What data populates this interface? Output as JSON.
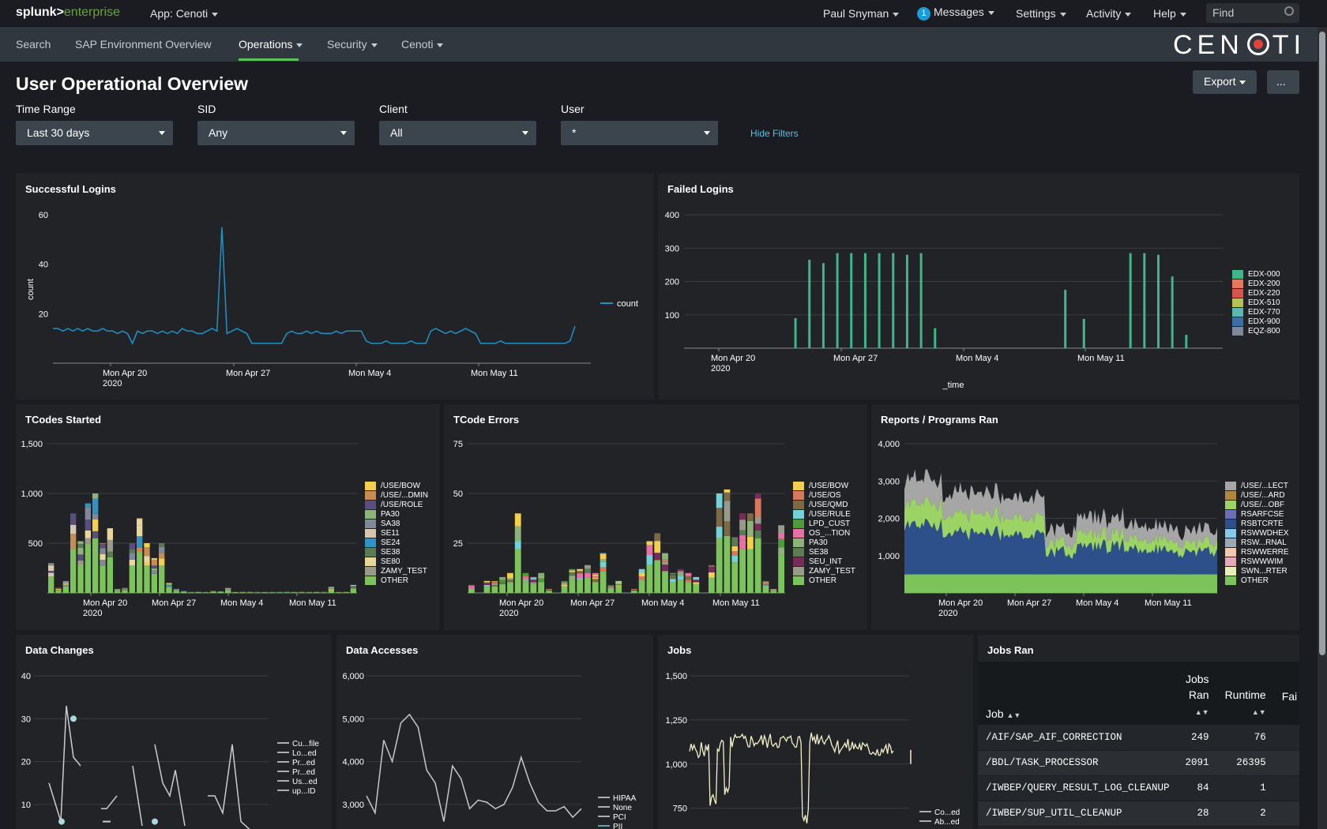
{
  "topbar": {
    "logo_a": "splunk>",
    "logo_b": "enterprise",
    "app": "App: Cenoti",
    "user": "Paul Snyman",
    "messages_count": "1",
    "messages": "Messages",
    "settings": "Settings",
    "activity": "Activity",
    "help": "Help",
    "find_placeholder": "Find"
  },
  "nav": {
    "items": [
      "Search",
      "SAP Environment Overview",
      "Operations",
      "Security",
      "Cenoti"
    ],
    "brand_left": "CEN",
    "brand_right": "TI"
  },
  "page": {
    "title": "User Operational Overview",
    "export": "Export",
    "more": "..."
  },
  "filters": {
    "time_label": "Time Range",
    "time_value": "Last 30 days",
    "sid_label": "SID",
    "sid_value": "Any",
    "client_label": "Client",
    "client_value": "All",
    "user_label": "User",
    "user_value": "*",
    "hide": "Hide Filters"
  },
  "colors": {
    "accent": "#5cc05c",
    "line_blue": "#1e93c6",
    "teal": "#3fb68b",
    "cream": "#f5f1c9"
  },
  "panels": {
    "successful_logins": "Successful Logins",
    "failed_logins": "Failed Logins",
    "tcodes_started": "TCodes Started",
    "tcode_errors": "TCode Errors",
    "reports_ran": "Reports / Programs Ran",
    "data_changes": "Data Changes",
    "data_accesses": "Data Accesses",
    "jobs": "Jobs",
    "jobs_ran": "Jobs Ran"
  },
  "chart_data": [
    {
      "id": "successful_logins",
      "type": "line",
      "ylabel": "count",
      "yticks": [
        20,
        40,
        60
      ],
      "ylim": [
        0,
        60
      ],
      "xticks": [
        "Mon Apr 20\n2020",
        "Mon Apr 27",
        "Mon May 4",
        "Mon May 11"
      ],
      "series": [
        {
          "name": "count",
          "color": "#1e93c6",
          "values": [
            14,
            14,
            13,
            14,
            13,
            14,
            13,
            14,
            13,
            13,
            14,
            13,
            13,
            12,
            13,
            12,
            8,
            13,
            12,
            13,
            13,
            12,
            13,
            12,
            13,
            12,
            14,
            13,
            13,
            12,
            12,
            13,
            14,
            13,
            55,
            12,
            13,
            14,
            13,
            12,
            8,
            8,
            8,
            8,
            8,
            8,
            8,
            12,
            13,
            12,
            12,
            13,
            12,
            13,
            12,
            12,
            12,
            13,
            12,
            13,
            13,
            13,
            13,
            9,
            8,
            8,
            8,
            9,
            8,
            8,
            8,
            8,
            9,
            8,
            8,
            8,
            13,
            14,
            13,
            12,
            13,
            12,
            13,
            14,
            13,
            12,
            8,
            8,
            8,
            8,
            9,
            8,
            8,
            8,
            8,
            8,
            8,
            8,
            8,
            8,
            8,
            8,
            8,
            8,
            9,
            15
          ]
        }
      ]
    },
    {
      "id": "failed_logins",
      "type": "bar",
      "xlabel": "_time",
      "yticks": [
        100,
        200,
        300,
        400
      ],
      "ylim": [
        0,
        400
      ],
      "xticks": [
        "Mon Apr 20\n2020",
        "Mon Apr 27",
        "Mon May 4",
        "Mon May 11"
      ],
      "legend": [
        "EDX-000",
        "EDX-200",
        "EDX-220",
        "EDX-510",
        "EDX-770",
        "EDX-900",
        "EQZ-800"
      ],
      "legend_colors": [
        "#3fb68b",
        "#e8785a",
        "#d9534f",
        "#b5c152",
        "#5bb7b2",
        "#3d6fa7",
        "#7e8a99"
      ],
      "values": [
        0,
        0,
        0,
        0,
        0,
        0,
        0,
        0,
        0,
        0,
        0,
        0,
        0,
        0,
        0,
        0,
        0,
        0,
        0,
        0,
        0,
        0,
        90,
        0,
        0,
        265,
        0,
        0,
        255,
        0,
        0,
        285,
        0,
        0,
        285,
        0,
        0,
        285,
        0,
        0,
        285,
        0,
        0,
        285,
        0,
        0,
        280,
        0,
        0,
        285,
        0,
        0,
        60,
        0,
        0,
        0,
        0,
        0,
        0,
        0,
        0,
        0,
        0,
        0,
        0,
        0,
        0,
        0,
        0,
        0,
        0,
        0,
        0,
        0,
        0,
        0,
        0,
        0,
        0,
        0,
        175,
        0,
        0,
        0,
        88,
        0,
        0,
        0,
        0,
        0,
        0,
        0,
        0,
        0,
        285,
        0,
        0,
        285,
        0,
        0,
        280,
        0,
        0,
        215,
        0,
        0,
        40,
        0,
        0,
        0
      ]
    },
    {
      "id": "tcodes_started",
      "type": "bar",
      "yticks": [
        500,
        "1,000",
        "1,500"
      ],
      "ylim": [
        0,
        1500
      ],
      "xticks": [
        "Mon Apr 20\n2020",
        "Mon Apr 27",
        "Mon May 4",
        "Mon May 11"
      ],
      "legend": [
        "/USE/BOW",
        "/USE/...DMIN",
        "/USE/ROLE",
        "PA30",
        "SA38",
        "SE11",
        "SE24",
        "SE38",
        "SE80",
        "ZAMY_TEST",
        "OTHER"
      ],
      "legend_colors": [
        "#f4cf4e",
        "#c78c52",
        "#5a4e7e",
        "#8db379",
        "#7e8a99",
        "#d8c7ad",
        "#2f94c3",
        "#597c52",
        "#e8d69a",
        "#9a9a8a",
        "#7dc35b"
      ]
    },
    {
      "id": "tcode_errors",
      "type": "bar",
      "yticks": [
        25,
        50,
        75
      ],
      "ylim": [
        0,
        75
      ],
      "xticks": [
        "Mon Apr 20\n2020",
        "Mon Apr 27",
        "Mon May 4",
        "Mon May 11"
      ],
      "legend": [
        "/USE/BOW",
        "/USE/OS",
        "/USE/QMD",
        "/USE/RULE",
        "LPD_CUST",
        "OS_...TION",
        "PA30",
        "SE38",
        "SEU_INT",
        "ZAMY_TEST",
        "OTHER"
      ],
      "legend_colors": [
        "#f4cf4e",
        "#d9785a",
        "#7c6a45",
        "#6fd3d8",
        "#4f9a3a",
        "#e96fa8",
        "#8db379",
        "#597c52",
        "#7a2a5a",
        "#9a9a8a",
        "#7dc35b"
      ]
    },
    {
      "id": "reports_ran",
      "type": "area",
      "yticks": [
        "1,000",
        "2,000",
        "3,000",
        "4,000"
      ],
      "ylim": [
        0,
        4000
      ],
      "xticks": [
        "Mon Apr 20\n2020",
        "Mon Apr 27",
        "Mon May 4",
        "Mon May 11"
      ],
      "legend": [
        "/USE/...LECT",
        "/USE/...ARD",
        "/USE/...OBF",
        "RSARFCSE",
        "RSBTCRTE",
        "RSWWDHEX",
        "RSW...RNAL",
        "RSWWERRE",
        "RSWWWIM",
        "SWN...RTER",
        "OTHER"
      ],
      "legend_colors": [
        "#a6a6a6",
        "#b3863e",
        "#9bd364",
        "#6a6fb8",
        "#2d4f8a",
        "#88c8e8",
        "#9aaab5",
        "#f2c9b0",
        "#e6a9b8",
        "#e6efb5",
        "#7dc35b"
      ]
    },
    {
      "id": "data_changes",
      "type": "line",
      "yticks": [
        10,
        20,
        30,
        40
      ],
      "ylim": [
        0,
        40
      ],
      "legend": [
        "Cu...file",
        "Lo...ed",
        "Pr...ed",
        "Pr...ed",
        "Us...ed",
        "up...ID"
      ]
    },
    {
      "id": "data_accesses",
      "type": "line",
      "yticks": [
        "3,000",
        "4,000",
        "5,000",
        "6,000"
      ],
      "ylim": [
        2500,
        6000
      ],
      "legend": [
        "HIPAA",
        "None",
        "PCI",
        "PII"
      ]
    },
    {
      "id": "jobs",
      "type": "line",
      "yticks": [
        750,
        "1,000",
        "1,250",
        "1,500"
      ],
      "ylim": [
        650,
        1500
      ],
      "legend": [
        "Co...ed",
        "Ab...ed"
      ]
    }
  ],
  "jobs_table": {
    "headers": {
      "job": "Job",
      "jobs_ran_1": "Jobs",
      "jobs_ran_2": "Ran",
      "runtime": "Runtime",
      "fail": "Fai"
    },
    "rows": [
      {
        "job": "/AIF/SAP_AIF_CORRECTION",
        "ran": "249",
        "runtime": "76"
      },
      {
        "job": "/BDL/TASK_PROCESSOR",
        "ran": "2091",
        "runtime": "26395"
      },
      {
        "job": "/IWBEP/QUERY_RESULT_LOG_CLEANUP",
        "ran": "84",
        "runtime": "1"
      },
      {
        "job": "/IWBEP/SUP_UTIL_CLEANUP",
        "ran": "28",
        "runtime": "2"
      }
    ]
  }
}
